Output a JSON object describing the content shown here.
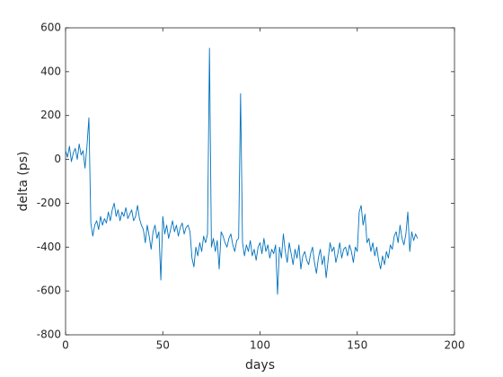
{
  "chart_data": {
    "type": "line",
    "xlabel": "days",
    "ylabel": "delta (ps)",
    "xlim": [
      0,
      200
    ],
    "xticks": [
      0,
      50,
      100,
      150,
      200
    ],
    "ylim": [
      -800,
      600
    ],
    "yticks": [
      -800,
      -600,
      -400,
      -200,
      0,
      200,
      400,
      600
    ],
    "color": "#0072bd",
    "x": [
      0,
      1,
      2,
      3,
      4,
      5,
      6,
      7,
      8,
      9,
      10,
      11,
      12,
      13,
      14,
      15,
      16,
      17,
      18,
      19,
      20,
      21,
      22,
      23,
      24,
      25,
      26,
      27,
      28,
      29,
      30,
      31,
      32,
      33,
      34,
      35,
      36,
      37,
      38,
      39,
      40,
      41,
      42,
      43,
      44,
      45,
      46,
      47,
      48,
      49,
      50,
      51,
      52,
      53,
      54,
      55,
      56,
      57,
      58,
      59,
      60,
      61,
      62,
      63,
      64,
      65,
      66,
      67,
      68,
      69,
      70,
      71,
      72,
      73,
      74,
      75,
      76,
      77,
      78,
      79,
      80,
      81,
      82,
      83,
      84,
      85,
      86,
      87,
      88,
      89,
      90,
      91,
      92,
      93,
      94,
      95,
      96,
      97,
      98,
      99,
      100,
      101,
      102,
      103,
      104,
      105,
      106,
      107,
      108,
      109,
      110,
      111,
      112,
      113,
      114,
      115,
      116,
      117,
      118,
      119,
      120,
      121,
      122,
      123,
      124,
      125,
      126,
      127,
      128,
      129,
      130,
      131,
      132,
      133,
      134,
      135,
      136,
      137,
      138,
      139,
      140,
      141,
      142,
      143,
      144,
      145,
      146,
      147,
      148,
      149,
      150,
      151,
      152,
      153,
      154,
      155,
      156,
      157,
      158,
      159,
      160,
      161,
      162,
      163,
      164,
      165,
      166,
      167,
      168,
      169,
      170,
      171,
      172,
      173,
      174,
      175,
      176,
      177,
      178,
      179,
      180,
      181
    ],
    "values": [
      40,
      10,
      60,
      -10,
      30,
      50,
      0,
      70,
      20,
      40,
      -40,
      60,
      190,
      -290,
      -350,
      -300,
      -280,
      -320,
      -260,
      -300,
      -270,
      -290,
      -240,
      -280,
      -230,
      -200,
      -260,
      -230,
      -280,
      -240,
      -260,
      -220,
      -270,
      -250,
      -230,
      -280,
      -260,
      -210,
      -270,
      -300,
      -320,
      -380,
      -300,
      -350,
      -410,
      -330,
      -300,
      -360,
      -330,
      -550,
      -260,
      -340,
      -300,
      -360,
      -320,
      -280,
      -330,
      -300,
      -350,
      -310,
      -290,
      -340,
      -310,
      -300,
      -330,
      -450,
      -490,
      -400,
      -440,
      -380,
      -420,
      -350,
      -380,
      -340,
      507,
      -400,
      -360,
      -420,
      -370,
      -500,
      -330,
      -350,
      -380,
      -400,
      -360,
      -340,
      -390,
      -420,
      -370,
      -360,
      300,
      -380,
      -440,
      -390,
      -420,
      -370,
      -440,
      -410,
      -460,
      -400,
      -380,
      -430,
      -360,
      -420,
      -390,
      -450,
      -410,
      -430,
      -390,
      -615,
      -400,
      -450,
      -340,
      -420,
      -470,
      -380,
      -430,
      -480,
      -410,
      -450,
      -390,
      -500,
      -440,
      -420,
      -460,
      -480,
      -430,
      -400,
      -470,
      -520,
      -450,
      -410,
      -480,
      -440,
      -540,
      -460,
      -380,
      -420,
      -400,
      -470,
      -430,
      -380,
      -450,
      -410,
      -400,
      -440,
      -390,
      -420,
      -470,
      -400,
      -420,
      -240,
      -210,
      -300,
      -250,
      -380,
      -360,
      -420,
      -380,
      -440,
      -400,
      -460,
      -500,
      -440,
      -480,
      -420,
      -450,
      -390,
      -410,
      -350,
      -330,
      -380,
      -300,
      -360,
      -390,
      -340,
      -240,
      -420,
      -330,
      -370,
      -340,
      -360
    ]
  }
}
